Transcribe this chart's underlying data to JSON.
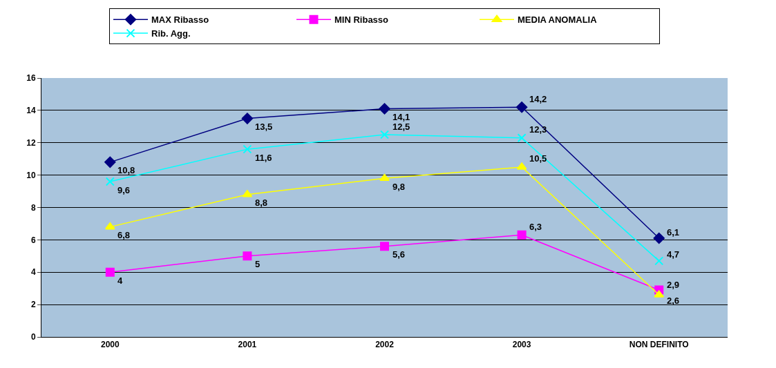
{
  "chart_data": {
    "type": "line",
    "categories": [
      "2000",
      "2001",
      "2002",
      "2003",
      "NON DEFINITO"
    ],
    "ylim": [
      0,
      16
    ],
    "yticks": [
      0,
      2,
      4,
      6,
      8,
      10,
      12,
      14,
      16
    ],
    "grid": "y",
    "legend": "top",
    "series": [
      {
        "name": "MAX Ribasso",
        "color": "#000080",
        "marker": "diamond",
        "values": [
          10.8,
          13.5,
          14.1,
          14.2,
          6.1
        ],
        "value_labels": [
          "10,8",
          "13,5",
          "14,1",
          "14,2",
          "6,1"
        ]
      },
      {
        "name": "MIN Ribasso",
        "color": "#ff00ff",
        "marker": "square",
        "values": [
          4,
          5,
          5.6,
          6.3,
          2.9
        ],
        "value_labels": [
          "4",
          "5",
          "5,6",
          "6,3",
          "2,9"
        ]
      },
      {
        "name": "MEDIA ANOMALIA",
        "color": "#ffff00",
        "marker": "triangle",
        "values": [
          6.8,
          8.8,
          9.8,
          10.5,
          2.6
        ],
        "value_labels": [
          "6,8",
          "8,8",
          "9,8",
          "10,5",
          "2,6"
        ]
      },
      {
        "name": "Rib. Agg.",
        "color": "#00ffff",
        "marker": "cross",
        "values": [
          9.6,
          11.6,
          12.5,
          12.3,
          4.7
        ],
        "value_labels": [
          "9,6",
          "11,6",
          "12,5",
          "12,3",
          "4,7"
        ]
      }
    ]
  }
}
